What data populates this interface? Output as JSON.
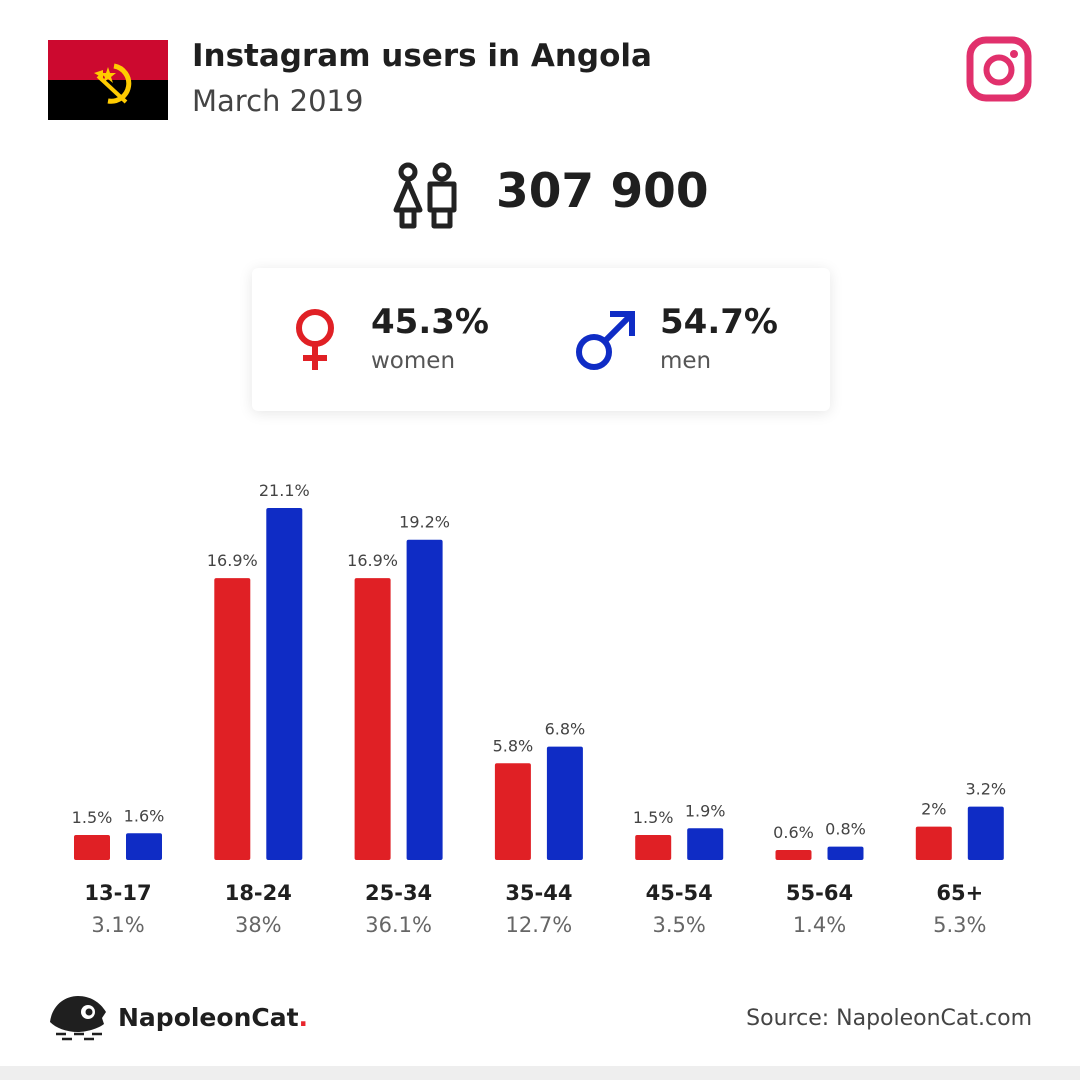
{
  "header": {
    "title": "Instagram users in Angola",
    "subtitle": "March 2019"
  },
  "summary": {
    "total_users": "307 900"
  },
  "gender": {
    "women_pct": "45.3%",
    "women_label": "women",
    "men_pct": "54.7%",
    "men_label": "men"
  },
  "colors": {
    "women": "#e02025",
    "men": "#0f2cc5",
    "instagram": "#e1306c"
  },
  "icons": {
    "flag": "angola-flag-icon",
    "instagram": "instagram-icon",
    "users": "users-icon",
    "female": "female-icon",
    "male": "male-icon",
    "brand": "napoleoncat-logo-icon"
  },
  "chart_data": {
    "type": "bar",
    "categories": [
      "13-17",
      "18-24",
      "25-34",
      "35-44",
      "45-54",
      "55-64",
      "65+"
    ],
    "category_totals": [
      "3.1%",
      "38%",
      "36.1%",
      "12.7%",
      "3.5%",
      "1.4%",
      "5.3%"
    ],
    "series": [
      {
        "values": [
          1.5,
          16.9,
          16.9,
          5.8,
          1.5,
          0.6,
          2
        ],
        "labels": [
          "1.5%",
          "16.9%",
          "16.9%",
          "5.8%",
          "1.5%",
          "0.6%",
          "2%"
        ],
        "color": "#e02025"
      },
      {
        "values": [
          1.6,
          21.1,
          19.2,
          6.8,
          1.9,
          0.8,
          3.2
        ],
        "labels": [
          "1.6%",
          "21.1%",
          "19.2%",
          "6.8%",
          "1.9%",
          "0.8%",
          "3.2%"
        ],
        "color": "#0f2cc5"
      }
    ]
  },
  "footer": {
    "brand_name": "NapoleonCat",
    "brand_dot": ".",
    "source": "Source: NapoleonCat.com"
  }
}
